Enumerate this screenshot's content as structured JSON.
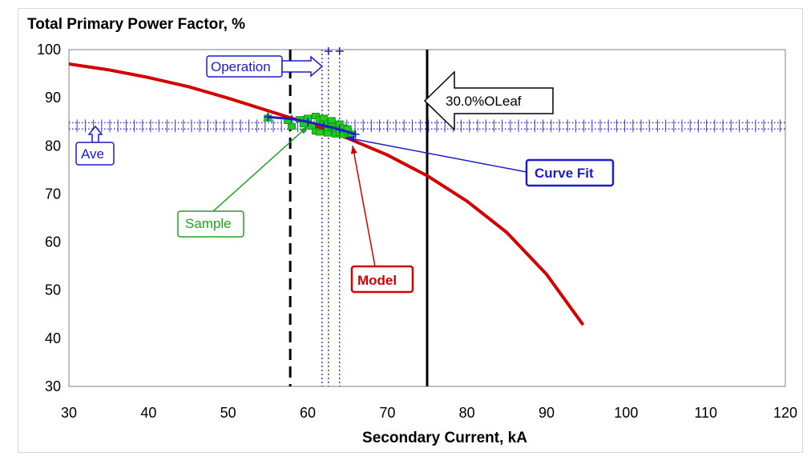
{
  "chart_data": {
    "type": "line",
    "title": "Total Primary Power Factor, %",
    "xlabel": "Secondary Current, kA",
    "ylabel": "",
    "xlim": [
      30,
      120
    ],
    "ylim": [
      30,
      100
    ],
    "x_ticks": [
      30,
      40,
      50,
      60,
      70,
      80,
      90,
      100,
      110,
      120
    ],
    "y_ticks": [
      30,
      40,
      50,
      60,
      70,
      80,
      90,
      100
    ],
    "grid": false,
    "series": [
      {
        "name": "Model",
        "color": "#d40000",
        "x": [
          30,
          35,
          40,
          45,
          50,
          55,
          60,
          65,
          70,
          75,
          80,
          85,
          90,
          94.5
        ],
        "y": [
          97,
          95.8,
          94.2,
          92.3,
          89.9,
          87.3,
          84.7,
          81.6,
          78.1,
          73.8,
          68.5,
          62,
          53.3,
          43
        ]
      },
      {
        "name": "Curve Fit",
        "color": "#1c1cc8",
        "x": [
          55,
          58,
          60,
          62,
          64,
          66
        ],
        "y": [
          86,
          85.6,
          85,
          84.2,
          83.4,
          82.4
        ]
      },
      {
        "name": "Sample",
        "color": "#22c922",
        "x": [
          55,
          57.5,
          58,
          59,
          59.5,
          60,
          60.5,
          61,
          61,
          61.5,
          61.5,
          62,
          62,
          62.5,
          62.5,
          63,
          63,
          63.5,
          63.5,
          64,
          64,
          64.5,
          64.5,
          65,
          65,
          65.5
        ],
        "y": [
          85.8,
          85.2,
          84,
          85.5,
          84.5,
          85.8,
          84,
          86.2,
          83,
          85.5,
          82.8,
          84.8,
          85.8,
          83.2,
          82.6,
          85.3,
          84,
          83.5,
          82.4,
          84.6,
          82.7,
          83.8,
          82.3,
          82.9,
          83.6,
          82.5
        ]
      }
    ],
    "reference_lines": [
      {
        "name": "Ave",
        "orientation": "horizontal",
        "values": [
          83.5,
          84.8
        ],
        "style": "dotted",
        "color": "#3a3ad0"
      },
      {
        "name": "Operation",
        "orientation": "vertical",
        "values": [
          61.8,
          62.6,
          64
        ],
        "style": "dotted",
        "color": "#3a3ad0"
      },
      {
        "name": "30.0%OLeaf",
        "orientation": "vertical",
        "values": [
          75
        ],
        "style": "solid",
        "color": "#000000"
      },
      {
        "name": "dashed-limit",
        "orientation": "vertical",
        "values": [
          57.8
        ],
        "style": "dashed",
        "color": "#000000"
      }
    ],
    "annotations": [
      {
        "text": "Operation",
        "color": "#1c1cc8"
      },
      {
        "text": "30.0%OLeaf",
        "color": "#000000"
      },
      {
        "text": "Ave",
        "color": "#1c1cc8"
      },
      {
        "text": "Curve Fit",
        "color": "#1c1cc8"
      },
      {
        "text": "Sample",
        "color": "#22a022"
      },
      {
        "text": "Model",
        "color": "#d40000"
      }
    ]
  }
}
